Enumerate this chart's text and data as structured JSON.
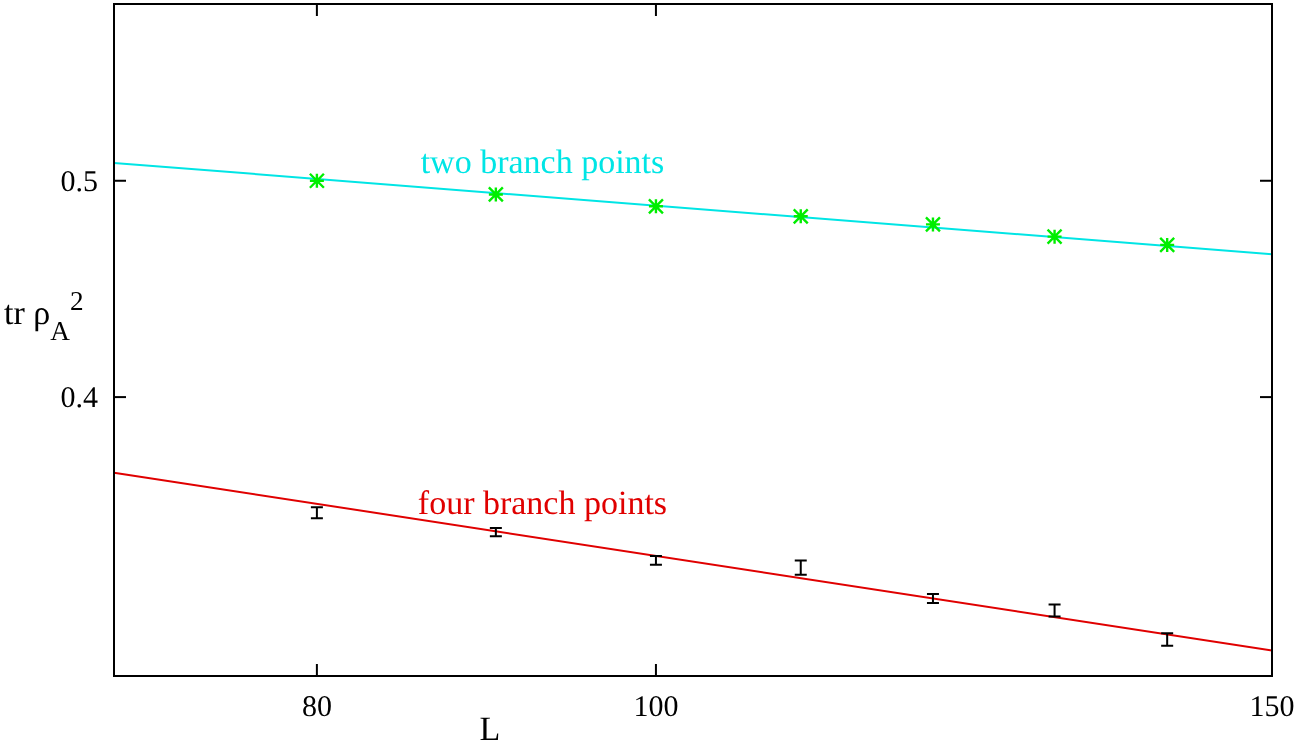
{
  "chart_data": {
    "type": "scatter",
    "xlabel": "L",
    "ylabel": "tr ρ$_{A}$$^{2}$",
    "log": "xy",
    "xlim": [
      70,
      150
    ],
    "ylim": [
      0.3,
      0.6
    ],
    "xticks": [
      80,
      100,
      150
    ],
    "yticks": [
      0.4,
      0.5
    ],
    "grid": false,
    "legend": false,
    "series": [
      {
        "name": "two branch points",
        "type": "line",
        "color": "#00e5e5",
        "x": [
          70,
          150
        ],
        "values": [
          0.5093,
          0.4635
        ],
        "marker": "none",
        "line_style": "solid"
      },
      {
        "type": "scatter",
        "color": "#00ee00",
        "x": [
          80,
          90,
          100,
          110,
          120,
          130,
          140
        ],
        "values": [
          0.5,
          0.493,
          0.487,
          0.482,
          0.478,
          0.472,
          0.468
        ],
        "marker": "cross"
      },
      {
        "name": "four branch points",
        "type": "line",
        "color": "#e00000",
        "x": [
          70,
          150
        ],
        "values": [
          0.37,
          0.308
        ],
        "marker": "none",
        "line_style": "solid"
      },
      {
        "type": "scatter",
        "color": "#000000",
        "x": [
          80,
          90,
          100,
          110,
          120,
          130,
          140
        ],
        "values": [
          0.355,
          0.348,
          0.338,
          0.3355,
          0.325,
          0.321,
          0.3115
        ],
        "errors": [
          0.002,
          0.0015,
          0.0015,
          0.0025,
          0.0015,
          0.002,
          0.002
        ]
      }
    ]
  }
}
